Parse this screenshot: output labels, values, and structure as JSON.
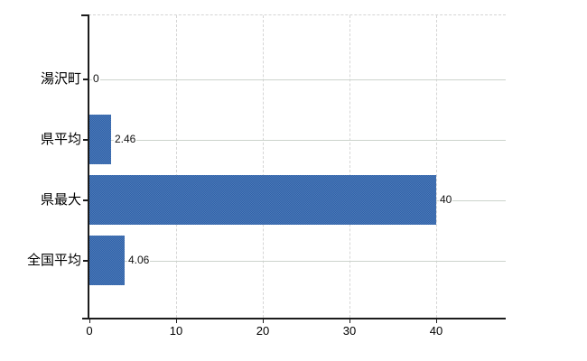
{
  "window": {
    "background_color": "#ffffff"
  },
  "chart_data": {
    "type": "bar",
    "orientation": "horizontal",
    "title": "",
    "xlabel": "",
    "ylabel": "",
    "categories": [
      "湯沢町",
      "県平均",
      "県最大",
      "全国平均"
    ],
    "values": [
      0,
      2.46,
      40,
      4.06
    ],
    "data_labels": [
      "0",
      "2.46",
      "40",
      "4.06"
    ],
    "x_ticks": [
      0,
      10,
      20,
      30,
      40
    ],
    "x_tick_labels": [
      "0",
      "10",
      "20",
      "30",
      "40"
    ],
    "xlim": [
      0,
      48
    ],
    "legend": "none",
    "grid": {
      "vertical": "dashed",
      "horizontal": "solid"
    },
    "colors": {
      "bar": "#3d6db1",
      "bar_dither_dark": "#2d61ae",
      "bar_dither_light": "#4f7ab2",
      "horizontal_gridline": "#ccd3cc",
      "vertical_gridline": "#d5d5d5",
      "axis": "#1c1c1c",
      "text": "#000000"
    }
  }
}
